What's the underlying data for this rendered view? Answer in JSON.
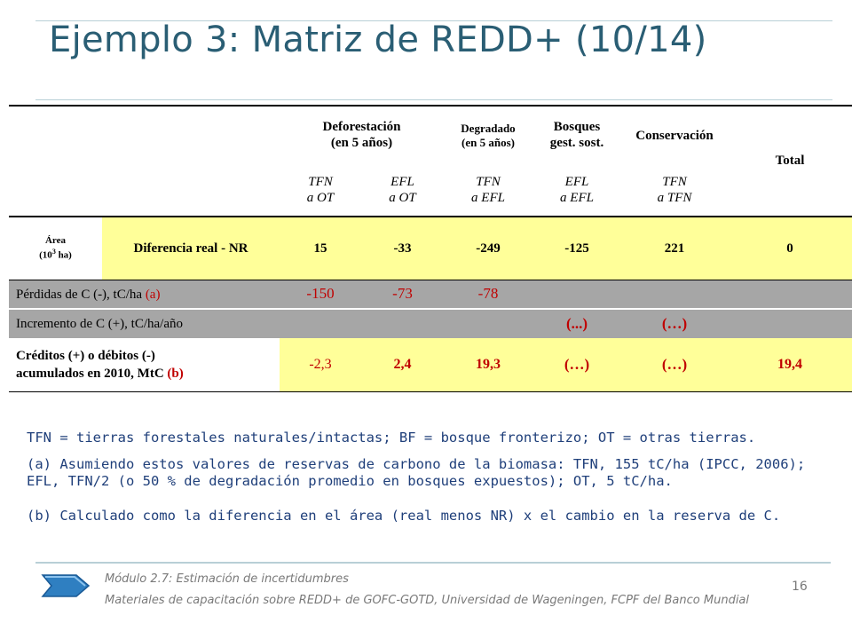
{
  "title": "Ejemplo 3: Matriz de REDD+ (10/14)",
  "headers": {
    "deforestation": [
      "Deforestación",
      "(en 5 años)"
    ],
    "degraded": [
      "Degradado",
      "(en 5 años)"
    ],
    "managed": [
      "Bosques",
      "gest. sost."
    ],
    "conservation": "Conservación",
    "total": "Total",
    "subheaders": [
      [
        "TFN",
        "a OT"
      ],
      [
        "EFL",
        "a OT"
      ],
      [
        "TFN",
        "a EFL"
      ],
      [
        "EFL",
        "a EFL"
      ],
      [
        "TFN",
        "a TFN"
      ]
    ]
  },
  "rows": {
    "area": {
      "label_line1": "Área",
      "label_unit_base": "(10",
      "label_unit_exp": "3",
      "label_unit_rest": " ha)",
      "sublabel": "Diferencia real - NR",
      "values": [
        "15",
        "-33",
        "-249",
        "-125",
        "221",
        "0"
      ]
    },
    "losses": {
      "label": "Pérdidas de C (-), tC/ha ",
      "label_note": "(a)",
      "values": [
        "-150",
        "-73",
        "-78"
      ]
    },
    "increment": {
      "label": "Incremento de C (+), tC/ha/año",
      "values": [
        "(...)",
        "(…)"
      ]
    },
    "credits": {
      "label_line1": "Créditos (+) o débitos (-)",
      "label_line2": "acumulados en 2010, MtC ",
      "label_note": "(b)",
      "values": [
        "-2,3",
        "2,4",
        "19,3",
        "(…)",
        "(…)",
        "19,4"
      ]
    }
  },
  "notes": [
    "TFN = tierras forestales naturales/intactas; BF = bosque fronterizo; OT = otras tierras.",
    "(a) Asumiendo estos valores de reservas de carbono de la biomasa: TFN, 155 tC/ha (IPCC, 2006); EFL, TFN/2 (o 50 % de degradación promedio en bosques expuestos); OT, 5 tC/ha.",
    "(b) Calculado como la diferencia en el área (real menos NR) x el cambio en la reserva de C."
  ],
  "footer": {
    "module": "Módulo 2.7: Estimación de incertidumbres",
    "materials": "Materiales de capacitación sobre REDD+ de GOFC-GOTD, Universidad de Wageningen, FCPF del Banco Mundial",
    "page": "16"
  },
  "colors": {
    "title": "#2a5e74",
    "yellow": "#ffff99",
    "gray": "#a6a6a6",
    "red": "#c00000",
    "notes": "#1f3f7a",
    "arrow": "#2f7fc1"
  }
}
